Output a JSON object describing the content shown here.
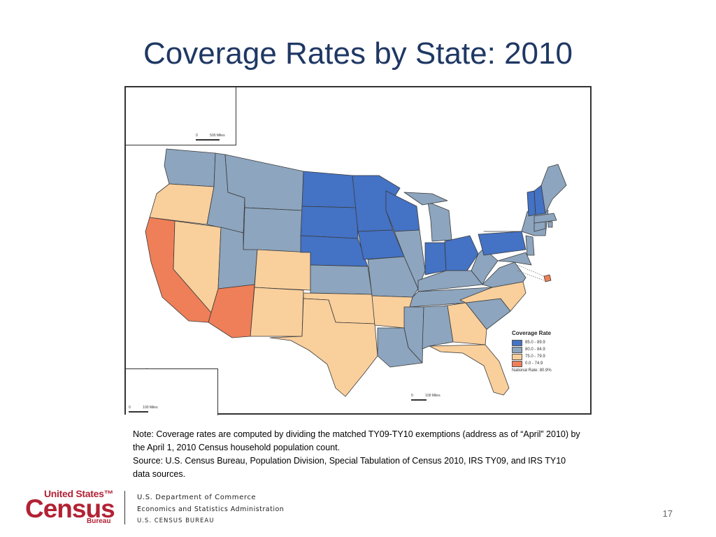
{
  "title": "Coverage Rates by State:  2010",
  "colors": {
    "c1": "#4472c4",
    "c2": "#8da5be",
    "c3": "#f9cf9c",
    "c4": "#ef7f58"
  },
  "map": {
    "legend": {
      "title": "Coverage Rate",
      "items": [
        {
          "label": "85.0 - 89.9",
          "color": "#4472c4"
        },
        {
          "label": "80.0 - 84.9",
          "color": "#8da5be"
        },
        {
          "label": "75.0 - 79.9",
          "color": "#f9cf9c"
        },
        {
          "label": "0.0 - 74.9",
          "color": "#ef7f58"
        }
      ],
      "national_rate": "National Rate: 80.9%"
    },
    "scale_alaska": {
      "zero": "0",
      "label": "500 Miles"
    },
    "scale_hawaii": {
      "zero": "0",
      "label": "100 Miles"
    },
    "scale_main": {
      "zero": "0",
      "label": "100 Miles"
    }
  },
  "note": {
    "line1": "Note: Coverage rates are computed by dividing the matched TY09-TY10 exemptions (address as of “April” 2010) by the April 1, 2010 Census household population count.",
    "line2": "Source:  U.S. Census Bureau, Population Division, Special Tabulation of Census 2010, IRS TY09, and IRS TY10 data sources."
  },
  "footer": {
    "logo_top": "United States™",
    "logo_main": "Census",
    "logo_bottom": "Bureau",
    "dept": "U.S. Department of Commerce",
    "esa": "Economics and Statistics Administration",
    "bureau": "U.S. CENSUS BUREAU",
    "page_number": "17"
  }
}
